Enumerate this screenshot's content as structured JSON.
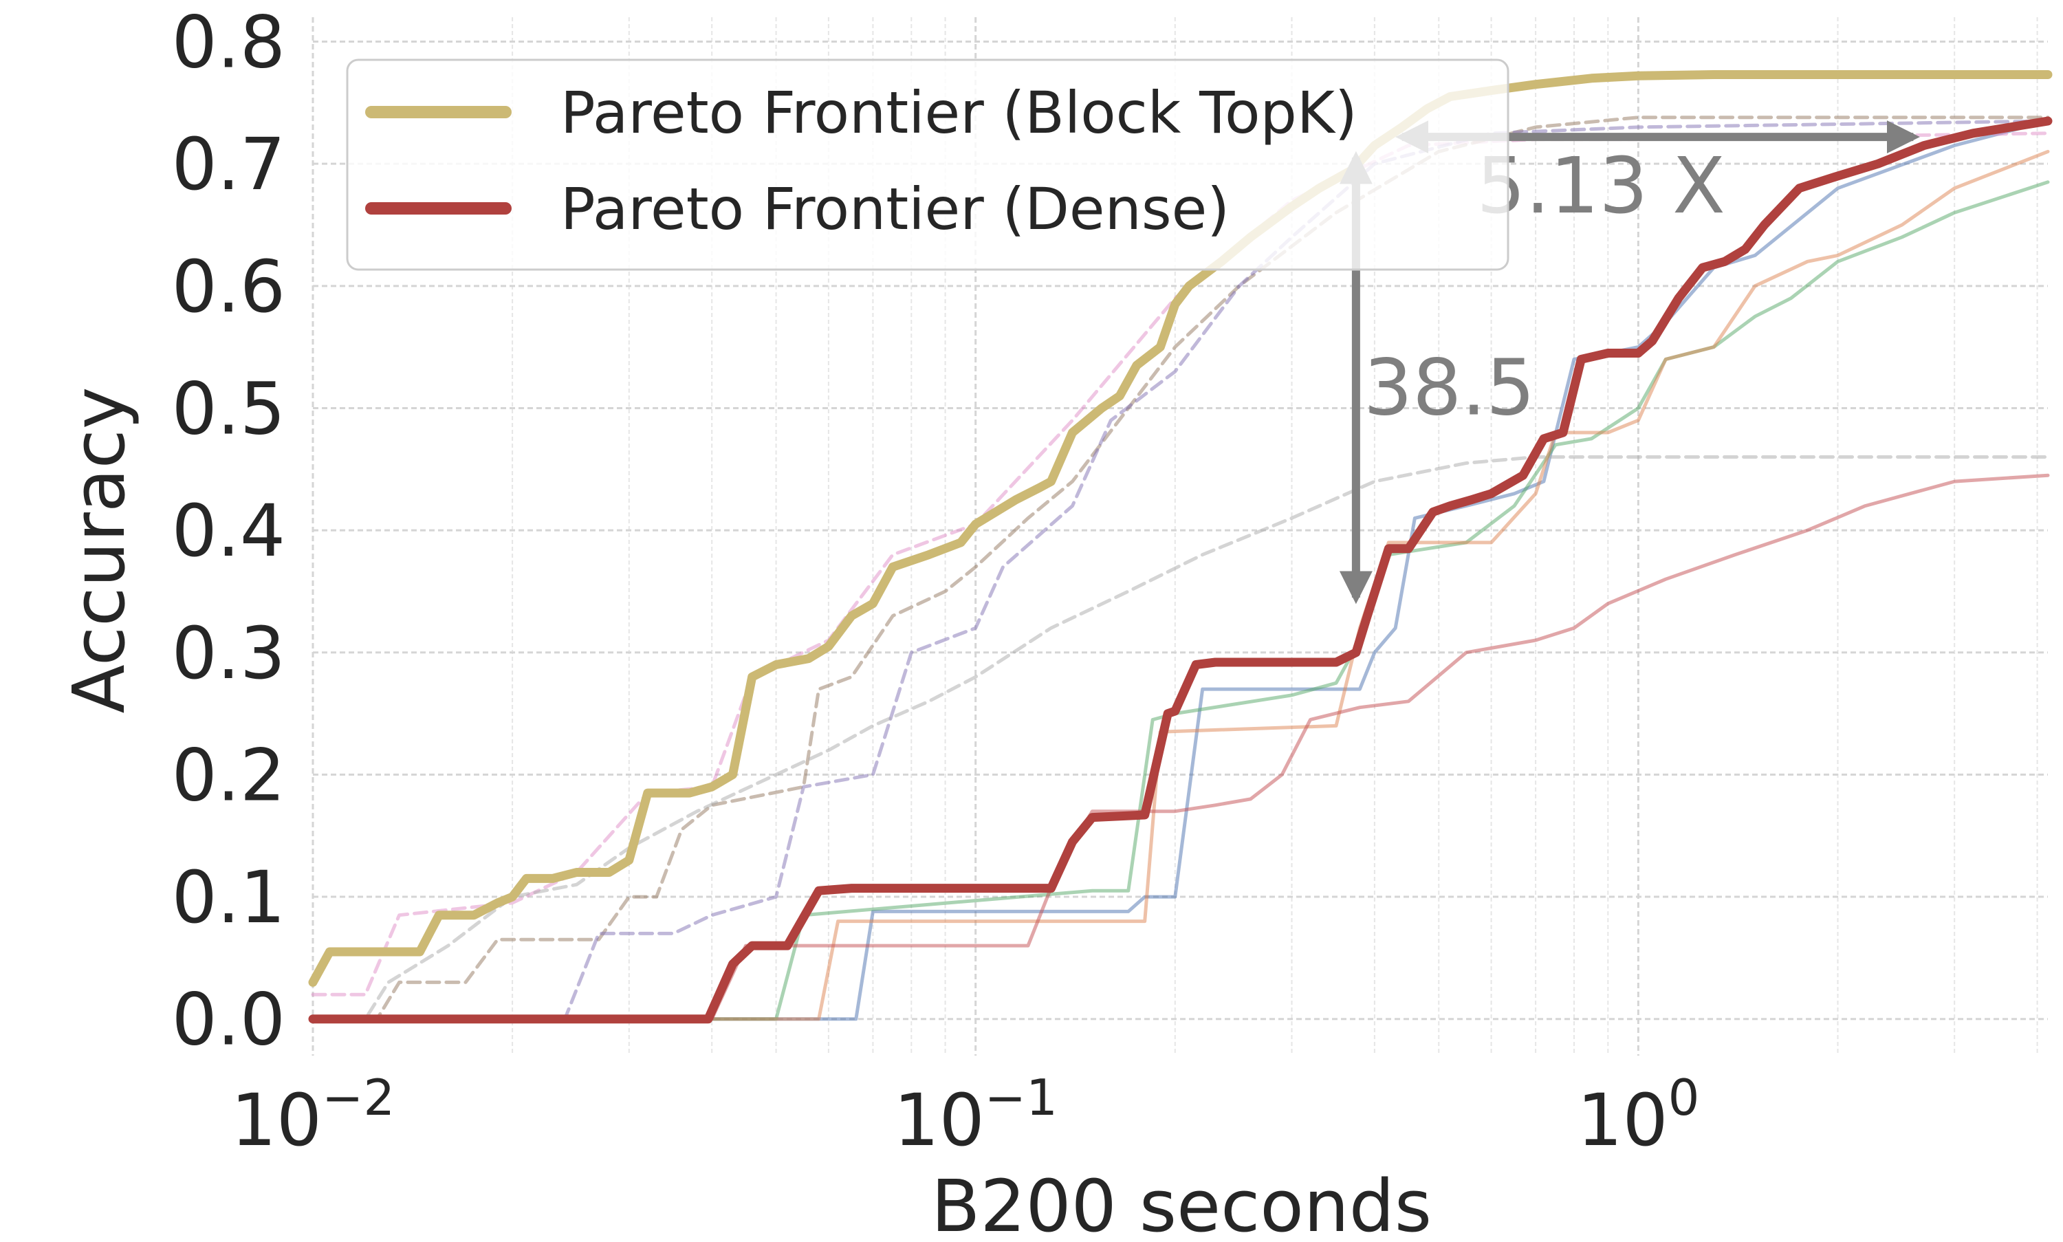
{
  "chart_data": {
    "type": "line",
    "title": "",
    "xlabel": "B200 seconds",
    "ylabel": "Accuracy",
    "xscale": "log",
    "xlim": [
      0.01,
      4.15
    ],
    "ylim": [
      -0.03,
      0.82
    ],
    "grid": true,
    "x_ticks": [
      {
        "value": 0.01,
        "base": "10",
        "exp": "−2"
      },
      {
        "value": 0.1,
        "base": "10",
        "exp": "−1"
      },
      {
        "value": 1,
        "base": "10",
        "exp": "0"
      }
    ],
    "y_ticks": [
      {
        "value": 0.0,
        "label": "0.0"
      },
      {
        "value": 0.1,
        "label": "0.1"
      },
      {
        "value": 0.2,
        "label": "0.2"
      },
      {
        "value": 0.3,
        "label": "0.3"
      },
      {
        "value": 0.4,
        "label": "0.4"
      },
      {
        "value": 0.5,
        "label": "0.5"
      },
      {
        "value": 0.6,
        "label": "0.6"
      },
      {
        "value": 0.7,
        "label": "0.7"
      },
      {
        "value": 0.8,
        "label": "0.8"
      }
    ],
    "legend": {
      "placement": "upper-left",
      "entries": [
        "Pareto Frontier (Block TopK)",
        "Pareto Frontier (Dense)"
      ]
    },
    "series": [
      {
        "name": "Pareto Frontier (Block TopK)",
        "color": "#ccb974",
        "style": "solid",
        "width": "thick",
        "points": [
          [
            0.01,
            0.03
          ],
          [
            0.0106,
            0.055
          ],
          [
            0.0145,
            0.055
          ],
          [
            0.0155,
            0.085
          ],
          [
            0.0175,
            0.085
          ],
          [
            0.019,
            0.095
          ],
          [
            0.02,
            0.1
          ],
          [
            0.021,
            0.115
          ],
          [
            0.023,
            0.115
          ],
          [
            0.025,
            0.12
          ],
          [
            0.028,
            0.12
          ],
          [
            0.03,
            0.13
          ],
          [
            0.032,
            0.185
          ],
          [
            0.037,
            0.185
          ],
          [
            0.04,
            0.19
          ],
          [
            0.043,
            0.2
          ],
          [
            0.046,
            0.28
          ],
          [
            0.05,
            0.29
          ],
          [
            0.056,
            0.295
          ],
          [
            0.06,
            0.305
          ],
          [
            0.065,
            0.33
          ],
          [
            0.07,
            0.34
          ],
          [
            0.075,
            0.37
          ],
          [
            0.085,
            0.38
          ],
          [
            0.095,
            0.39
          ],
          [
            0.1,
            0.405
          ],
          [
            0.115,
            0.425
          ],
          [
            0.125,
            0.435
          ],
          [
            0.13,
            0.44
          ],
          [
            0.14,
            0.48
          ],
          [
            0.155,
            0.5
          ],
          [
            0.165,
            0.51
          ],
          [
            0.175,
            0.535
          ],
          [
            0.19,
            0.55
          ],
          [
            0.2,
            0.585
          ],
          [
            0.21,
            0.6
          ],
          [
            0.235,
            0.62
          ],
          [
            0.26,
            0.64
          ],
          [
            0.3,
            0.665
          ],
          [
            0.33,
            0.68
          ],
          [
            0.37,
            0.695
          ],
          [
            0.4,
            0.715
          ],
          [
            0.44,
            0.73
          ],
          [
            0.48,
            0.745
          ],
          [
            0.52,
            0.755
          ],
          [
            0.6,
            0.76
          ],
          [
            0.7,
            0.765
          ],
          [
            0.85,
            0.77
          ],
          [
            1.0,
            0.772
          ],
          [
            1.3,
            0.773
          ],
          [
            4.15,
            0.773
          ]
        ]
      },
      {
        "name": "Pareto Frontier (Dense)",
        "color": "#b0413e",
        "style": "solid",
        "width": "thick",
        "points": [
          [
            0.01,
            0.0
          ],
          [
            0.0395,
            0.0
          ],
          [
            0.043,
            0.045
          ],
          [
            0.046,
            0.06
          ],
          [
            0.052,
            0.06
          ],
          [
            0.058,
            0.105
          ],
          [
            0.065,
            0.107
          ],
          [
            0.095,
            0.107
          ],
          [
            0.13,
            0.107
          ],
          [
            0.14,
            0.145
          ],
          [
            0.15,
            0.165
          ],
          [
            0.18,
            0.167
          ],
          [
            0.195,
            0.25
          ],
          [
            0.2,
            0.252
          ],
          [
            0.215,
            0.29
          ],
          [
            0.23,
            0.292
          ],
          [
            0.35,
            0.292
          ],
          [
            0.375,
            0.3
          ],
          [
            0.39,
            0.33
          ],
          [
            0.42,
            0.385
          ],
          [
            0.45,
            0.385
          ],
          [
            0.49,
            0.415
          ],
          [
            0.52,
            0.42
          ],
          [
            0.56,
            0.425
          ],
          [
            0.6,
            0.43
          ],
          [
            0.67,
            0.445
          ],
          [
            0.72,
            0.475
          ],
          [
            0.77,
            0.48
          ],
          [
            0.82,
            0.54
          ],
          [
            0.9,
            0.545
          ],
          [
            1.0,
            0.545
          ],
          [
            1.05,
            0.555
          ],
          [
            1.15,
            0.59
          ],
          [
            1.25,
            0.615
          ],
          [
            1.35,
            0.62
          ],
          [
            1.45,
            0.63
          ],
          [
            1.55,
            0.65
          ],
          [
            1.75,
            0.68
          ],
          [
            2.0,
            0.69
          ],
          [
            2.3,
            0.7
          ],
          [
            2.7,
            0.715
          ],
          [
            3.2,
            0.725
          ],
          [
            4.15,
            0.735
          ]
        ]
      },
      {
        "name": "",
        "color": "#4c72b0",
        "style": "solid",
        "width": "thin",
        "points": [
          [
            0.01,
            0.0
          ],
          [
            0.066,
            0.0
          ],
          [
            0.07,
            0.088
          ],
          [
            0.17,
            0.088
          ],
          [
            0.18,
            0.1
          ],
          [
            0.2,
            0.1
          ],
          [
            0.22,
            0.27
          ],
          [
            0.38,
            0.27
          ],
          [
            0.4,
            0.3
          ],
          [
            0.43,
            0.32
          ],
          [
            0.46,
            0.41
          ],
          [
            0.55,
            0.42
          ],
          [
            0.65,
            0.43
          ],
          [
            0.72,
            0.44
          ],
          [
            0.8,
            0.54
          ],
          [
            0.9,
            0.545
          ],
          [
            1.0,
            0.55
          ],
          [
            1.1,
            0.57
          ],
          [
            1.3,
            0.615
          ],
          [
            1.5,
            0.625
          ],
          [
            2.0,
            0.68
          ],
          [
            3.0,
            0.715
          ],
          [
            4.15,
            0.735
          ]
        ]
      },
      {
        "name": "",
        "color": "#55a868",
        "style": "solid",
        "width": "thin",
        "points": [
          [
            0.01,
            0.0
          ],
          [
            0.05,
            0.0
          ],
          [
            0.055,
            0.085
          ],
          [
            0.15,
            0.105
          ],
          [
            0.17,
            0.105
          ],
          [
            0.185,
            0.245
          ],
          [
            0.2,
            0.25
          ],
          [
            0.3,
            0.265
          ],
          [
            0.35,
            0.275
          ],
          [
            0.38,
            0.31
          ],
          [
            0.42,
            0.38
          ],
          [
            0.55,
            0.39
          ],
          [
            0.65,
            0.42
          ],
          [
            0.75,
            0.47
          ],
          [
            0.85,
            0.475
          ],
          [
            1.0,
            0.5
          ],
          [
            1.1,
            0.54
          ],
          [
            1.3,
            0.55
          ],
          [
            1.5,
            0.575
          ],
          [
            1.7,
            0.59
          ],
          [
            2.0,
            0.62
          ],
          [
            2.5,
            0.64
          ],
          [
            3.0,
            0.66
          ],
          [
            4.15,
            0.685
          ]
        ]
      },
      {
        "name": "",
        "color": "#dd8452",
        "style": "solid",
        "width": "thin",
        "points": [
          [
            0.01,
            0.0
          ],
          [
            0.058,
            0.0
          ],
          [
            0.062,
            0.08
          ],
          [
            0.17,
            0.08
          ],
          [
            0.18,
            0.08
          ],
          [
            0.19,
            0.235
          ],
          [
            0.35,
            0.24
          ],
          [
            0.38,
            0.32
          ],
          [
            0.42,
            0.39
          ],
          [
            0.6,
            0.39
          ],
          [
            0.7,
            0.43
          ],
          [
            0.75,
            0.48
          ],
          [
            0.9,
            0.48
          ],
          [
            1.0,
            0.49
          ],
          [
            1.1,
            0.54
          ],
          [
            1.3,
            0.55
          ],
          [
            1.5,
            0.6
          ],
          [
            1.8,
            0.62
          ],
          [
            2.0,
            0.625
          ],
          [
            2.5,
            0.65
          ],
          [
            3.0,
            0.68
          ],
          [
            4.15,
            0.71
          ]
        ]
      },
      {
        "name": "",
        "color": "#c44e52",
        "style": "solid",
        "width": "thin",
        "points": [
          [
            0.01,
            0.0
          ],
          [
            0.04,
            0.0
          ],
          [
            0.045,
            0.06
          ],
          [
            0.12,
            0.06
          ],
          [
            0.135,
            0.13
          ],
          [
            0.15,
            0.17
          ],
          [
            0.2,
            0.17
          ],
          [
            0.23,
            0.175
          ],
          [
            0.26,
            0.18
          ],
          [
            0.29,
            0.2
          ],
          [
            0.32,
            0.245
          ],
          [
            0.38,
            0.255
          ],
          [
            0.45,
            0.26
          ],
          [
            0.55,
            0.3
          ],
          [
            0.7,
            0.31
          ],
          [
            0.8,
            0.32
          ],
          [
            0.9,
            0.34
          ],
          [
            1.1,
            0.36
          ],
          [
            1.4,
            0.38
          ],
          [
            1.8,
            0.4
          ],
          [
            2.2,
            0.42
          ],
          [
            3.0,
            0.44
          ],
          [
            4.15,
            0.445
          ]
        ]
      },
      {
        "name": "",
        "color": "#e08ec8",
        "style": "dashed",
        "width": "thin",
        "points": [
          [
            0.01,
            0.02
          ],
          [
            0.012,
            0.02
          ],
          [
            0.0135,
            0.085
          ],
          [
            0.02,
            0.095
          ],
          [
            0.025,
            0.12
          ],
          [
            0.032,
            0.185
          ],
          [
            0.04,
            0.19
          ],
          [
            0.046,
            0.28
          ],
          [
            0.06,
            0.31
          ],
          [
            0.075,
            0.38
          ],
          [
            0.1,
            0.405
          ],
          [
            0.14,
            0.49
          ],
          [
            0.2,
            0.59
          ],
          [
            0.3,
            0.67
          ],
          [
            0.45,
            0.715
          ],
          [
            0.7,
            0.72
          ],
          [
            1.0,
            0.72
          ],
          [
            4.15,
            0.725
          ]
        ]
      },
      {
        "name": "",
        "color": "#937860",
        "style": "dashed",
        "width": "thin",
        "points": [
          [
            0.01,
            0.0
          ],
          [
            0.0125,
            0.0
          ],
          [
            0.0135,
            0.03
          ],
          [
            0.017,
            0.03
          ],
          [
            0.019,
            0.065
          ],
          [
            0.027,
            0.065
          ],
          [
            0.03,
            0.1
          ],
          [
            0.033,
            0.1
          ],
          [
            0.036,
            0.155
          ],
          [
            0.04,
            0.175
          ],
          [
            0.055,
            0.19
          ],
          [
            0.058,
            0.27
          ],
          [
            0.065,
            0.28
          ],
          [
            0.075,
            0.33
          ],
          [
            0.09,
            0.35
          ],
          [
            0.1,
            0.37
          ],
          [
            0.12,
            0.41
          ],
          [
            0.14,
            0.44
          ],
          [
            0.17,
            0.5
          ],
          [
            0.2,
            0.55
          ],
          [
            0.25,
            0.6
          ],
          [
            0.35,
            0.66
          ],
          [
            0.5,
            0.71
          ],
          [
            0.7,
            0.73
          ],
          [
            1.0,
            0.738
          ],
          [
            4.15,
            0.738
          ]
        ]
      },
      {
        "name": "",
        "color": "#8172b3",
        "style": "dashed",
        "width": "thin",
        "points": [
          [
            0.01,
            0.0
          ],
          [
            0.024,
            0.0
          ],
          [
            0.027,
            0.07
          ],
          [
            0.035,
            0.07
          ],
          [
            0.04,
            0.085
          ],
          [
            0.05,
            0.1
          ],
          [
            0.055,
            0.19
          ],
          [
            0.07,
            0.2
          ],
          [
            0.08,
            0.3
          ],
          [
            0.1,
            0.32
          ],
          [
            0.11,
            0.37
          ],
          [
            0.14,
            0.42
          ],
          [
            0.16,
            0.49
          ],
          [
            0.2,
            0.53
          ],
          [
            0.25,
            0.6
          ],
          [
            0.3,
            0.64
          ],
          [
            0.4,
            0.7
          ],
          [
            0.6,
            0.725
          ],
          [
            1.0,
            0.73
          ],
          [
            4.15,
            0.735
          ]
        ]
      },
      {
        "name": "",
        "color": "#a9a9a9",
        "style": "dashed",
        "width": "thin",
        "points": [
          [
            0.01,
            0.0
          ],
          [
            0.012,
            0.0
          ],
          [
            0.013,
            0.03
          ],
          [
            0.016,
            0.06
          ],
          [
            0.02,
            0.1
          ],
          [
            0.025,
            0.11
          ],
          [
            0.03,
            0.14
          ],
          [
            0.038,
            0.17
          ],
          [
            0.05,
            0.2
          ],
          [
            0.06,
            0.22
          ],
          [
            0.07,
            0.24
          ],
          [
            0.085,
            0.26
          ],
          [
            0.1,
            0.28
          ],
          [
            0.13,
            0.32
          ],
          [
            0.17,
            0.35
          ],
          [
            0.22,
            0.38
          ],
          [
            0.3,
            0.41
          ],
          [
            0.4,
            0.44
          ],
          [
            0.55,
            0.455
          ],
          [
            0.7,
            0.46
          ],
          [
            4.15,
            0.46
          ]
        ]
      }
    ],
    "annotations": [
      {
        "label": "38.5",
        "type": "vertical-double-arrow",
        "x": 0.375,
        "y_from": 0.345,
        "y_to": 0.705,
        "label_x": 0.385,
        "label_y": 0.495,
        "color": "#808080"
      },
      {
        "label": "5.13 X",
        "type": "horizontal-double-arrow",
        "y": 0.722,
        "x_from": 0.44,
        "x_to": 2.6,
        "label_x": 0.57,
        "label_y": 0.66,
        "color": "#808080"
      }
    ]
  }
}
